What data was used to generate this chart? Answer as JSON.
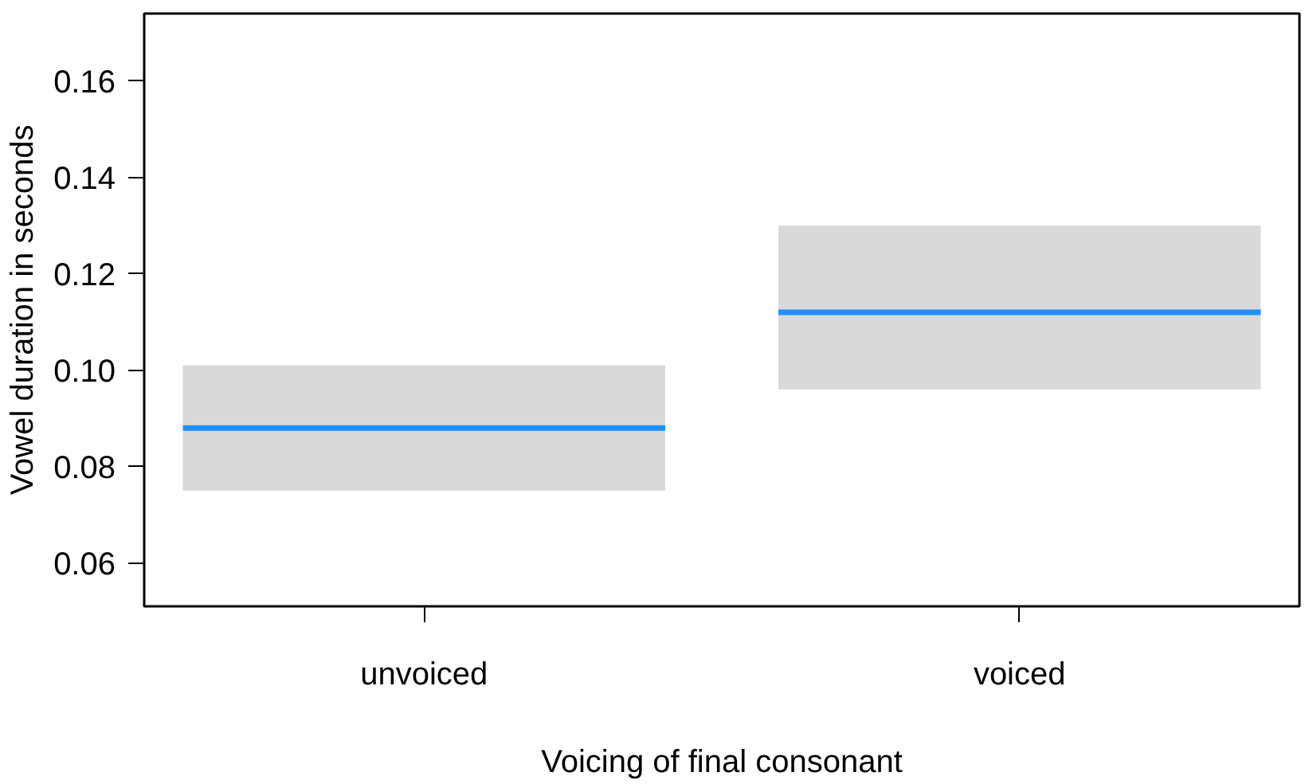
{
  "chart_data": {
    "type": "box",
    "xlabel": "Voicing of final consonant",
    "ylabel": "Vowel duration in seconds",
    "categories": [
      "unvoiced",
      "voiced"
    ],
    "series": [
      {
        "color": "#d9d9d9",
        "boxes": [
          {
            "low": 0.075,
            "q1": 0.075,
            "median": 0.088,
            "q3": 0.101,
            "high": 0.101
          },
          {
            "low": 0.096,
            "q1": 0.096,
            "median": 0.112,
            "q3": 0.13,
            "high": 0.13
          }
        ]
      }
    ],
    "ylim": [
      0.051,
      0.174
    ],
    "yticks": [
      0.06,
      0.08,
      {
        "value": 0.1,
        "label": "0.10"
      },
      0.12,
      0.14,
      0.16
    ],
    "grid": false
  }
}
